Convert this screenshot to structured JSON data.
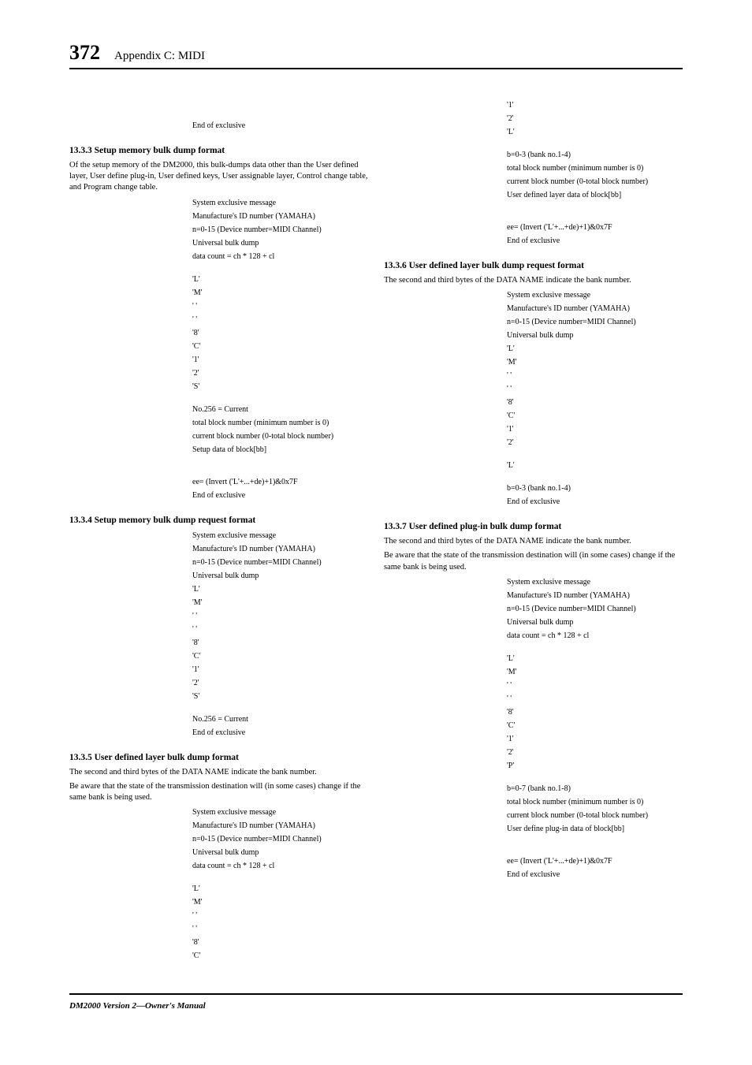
{
  "page_number": "372",
  "chapter_title": "Appendix C: MIDI",
  "footer": "DM2000 Version 2—Owner's Manual",
  "col1": {
    "top_end": "End of exclusive",
    "s1333": {
      "heading": "13.3.3 Setup memory bulk dump format",
      "intro": "Of the setup memory of the DM2000, this bulk-dumps data other than the User defined layer, User define plug-in, User defined keys, User assignable layer, Control change table, and Program change table.",
      "lines": [
        "System exclusive message",
        "Manufacture's ID number (YAMAHA)",
        "n=0-15 (Device number=MIDI Channel)",
        "Universal bulk dump",
        "data count = ch * 128 + cl",
        "",
        "'L'",
        "'M'",
        "' '",
        "' '",
        "'8'",
        "'C'",
        "'1'",
        "'2'",
        "'S'",
        "",
        "No.256 = Current",
        "total block number (minimum number is 0)",
        "current block number (0-total block number)",
        "Setup data of block[bb]",
        "",
        "",
        "ee= (Invert ('L'+...+de)+1)&0x7F",
        "End of exclusive"
      ]
    },
    "s1334": {
      "heading": "13.3.4 Setup memory bulk dump request format",
      "lines": [
        "System exclusive message",
        "Manufacture's ID number (YAMAHA)",
        "n=0-15 (Device number=MIDI Channel)",
        "Universal bulk dump",
        "'L'",
        "'M'",
        "' '",
        "' '",
        "'8'",
        "'C'",
        "'1'",
        "'2'",
        "'S'",
        "",
        "No.256 = Current",
        "End of exclusive"
      ]
    },
    "s1335": {
      "heading": "13.3.5 User defined layer bulk dump format",
      "intro1": "The second and third bytes of the DATA NAME indicate the bank number.",
      "intro2": "Be aware that the state of the transmission destination will (in some cases) change if the same bank is being used.",
      "lines": [
        "System exclusive message",
        "Manufacture's ID number (YAMAHA)",
        "n=0-15 (Device number=MIDI Channel)",
        "Universal bulk dump",
        "data count = ch * 128 + cl",
        "",
        "'L'",
        "'M'",
        "' '",
        "' '",
        "'8'",
        "'C'"
      ]
    }
  },
  "col2": {
    "top_lines": [
      "'1'",
      "'2'",
      "'L'",
      "",
      "b=0-3 (bank no.1-4)",
      "total block number (minimum number is 0)",
      "current block number (0-total block number)",
      "User defined layer data of block[bb]",
      "",
      "",
      "ee= (Invert ('L'+...+de)+1)&0x7F",
      "End of exclusive"
    ],
    "s1336": {
      "heading": "13.3.6 User defined layer bulk dump request format",
      "intro": "The second and third bytes of the DATA NAME indicate the bank number.",
      "lines": [
        "System exclusive message",
        "Manufacture's ID number (YAMAHA)",
        "n=0-15 (Device number=MIDI Channel)",
        "Universal bulk dump",
        "'L'",
        "'M'",
        "' '",
        "' '",
        "'8'",
        "'C'",
        "'1'",
        "'2'",
        "",
        "'L'",
        "",
        "b=0-3 (bank no.1-4)",
        "End of exclusive"
      ]
    },
    "s1337": {
      "heading": "13.3.7 User defined plug-in bulk dump format",
      "intro1": "The second and third bytes of the DATA NAME indicate the bank number.",
      "intro2": "Be aware that the state of the transmission destination will (in some cases) change if the same bank is being used.",
      "lines": [
        "System exclusive message",
        "Manufacture's ID number (YAMAHA)",
        "n=0-15 (Device number=MIDI Channel)",
        "Universal bulk dump",
        "data count = ch * 128 + cl",
        "",
        "'L'",
        "'M'",
        "' '",
        "' '",
        "'8'",
        "'C'",
        "'1'",
        "'2'",
        "'P'",
        "",
        "b=0-7 (bank no.1-8)",
        "total block number (minimum number is 0)",
        "current block number (0-total block number)",
        "User define plug-in data of block[bb]",
        "",
        "",
        "ee= (Invert ('L'+...+de)+1)&0x7F",
        "End of exclusive"
      ]
    }
  }
}
